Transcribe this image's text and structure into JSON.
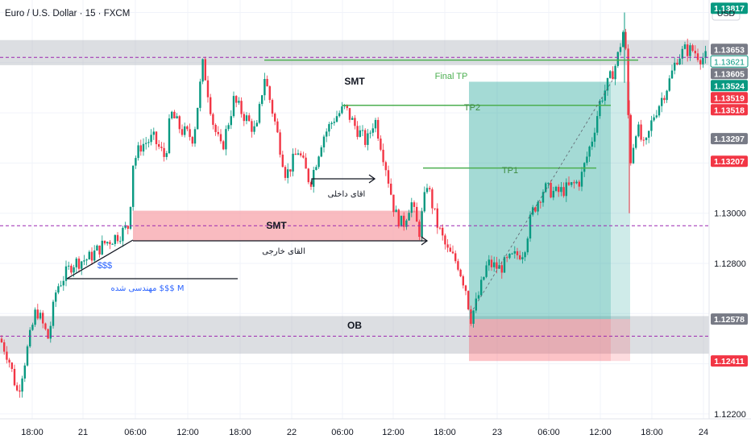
{
  "header": {
    "title": "Euro / U.S. Dollar · 15 · FXCM",
    "currency": "USD"
  },
  "chart_data": {
    "type": "candlestick",
    "symbol": "Euro / U.S. Dollar · 15 · FXCM",
    "x_ticks": [
      "18:00",
      "21",
      "06:00",
      "12:00",
      "18:00",
      "22",
      "06:00",
      "12:00",
      "18:00",
      "23",
      "06:00",
      "12:00",
      "18:00",
      "24"
    ],
    "y_ticks": [
      "1.12200",
      "1.12800",
      "1.13000"
    ],
    "ylim": [
      1.1215,
      1.1385
    ],
    "price_tags": [
      {
        "value": 1.13817,
        "label": "1.13817",
        "color": "#089981"
      },
      {
        "value": 1.13653,
        "label": "1.13653",
        "color": "#787b86"
      },
      {
        "value": 1.13621,
        "label": "1.13621",
        "color": "#ffffff"
      },
      {
        "value": 1.13605,
        "label": "1.13605",
        "color": "#787b86"
      },
      {
        "value": 1.13524,
        "label": "1.13524",
        "color": "#089981"
      },
      {
        "value": 1.13519,
        "label": "1.13519",
        "color": "#f23645"
      },
      {
        "value": 1.13518,
        "label": "1.13518",
        "color": "#f23645"
      },
      {
        "value": 1.13297,
        "label": "1.13297",
        "color": "#787b86"
      },
      {
        "value": 1.13207,
        "label": "1.13207",
        "color": "#f23645"
      },
      {
        "value": 1.12578,
        "label": "1.12578",
        "color": "#787b86"
      },
      {
        "value": 1.12411,
        "label": "1.12411",
        "color": "#f23645"
      }
    ],
    "annotations": {
      "smt_top": "SMT",
      "smt_mid": "SMT",
      "ob": "OB",
      "final_tp": "Final TP",
      "tp2": "TP2",
      "tp1": "TP1",
      "inner_liquidity": "اقای داخلی",
      "outer_liquidity": "القای خارجی",
      "dollars": "$$$",
      "engineered": "مهندسی شده $$$ M"
    },
    "colors": {
      "up": "#089981",
      "down": "#f23645",
      "tp_line": "#4caf50",
      "dashed_level": "#9c27b0",
      "profit_zone": "#26a69a",
      "loss_zone": "#f7525f",
      "zone_gray": "#b2b5be",
      "smt_zone": "#f7a4ab"
    }
  }
}
